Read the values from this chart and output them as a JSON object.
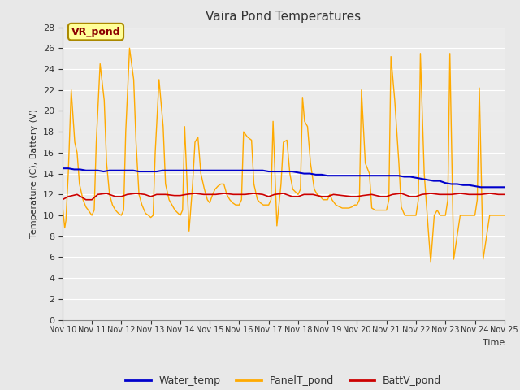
{
  "title": "Vaira Pond Temperatures",
  "xlabel": "Time",
  "ylabel": "Temperature (C), Battery (V)",
  "ylim": [
    0,
    28
  ],
  "yticks": [
    0,
    2,
    4,
    6,
    8,
    10,
    12,
    14,
    16,
    18,
    20,
    22,
    24,
    26,
    28
  ],
  "xtick_labels": [
    "Nov 10",
    "Nov 11",
    "Nov 12",
    "Nov 13",
    "Nov 14",
    "Nov 15",
    "Nov 16",
    "Nov 17",
    "Nov 18",
    "Nov 19",
    "Nov 20",
    "Nov 21",
    "Nov 22",
    "Nov 23",
    "Nov 24",
    "Nov 25"
  ],
  "background_color": "#e8e8e8",
  "plot_bg_color": "#ebebeb",
  "grid_color": "white",
  "water_temp_color": "#0000cc",
  "panel_temp_color": "#ffaa00",
  "batt_color": "#cc0000",
  "annotation_text": "VR_pond",
  "annotation_bg": "#ffff99",
  "annotation_border": "#aa8800",
  "annotation_text_color": "#8b0000",
  "legend_water": "Water_temp",
  "legend_panel": "PanelT_pond",
  "legend_batt": "BattV_pond",
  "water_temp_data": {
    "days": [
      10.0,
      10.2,
      10.4,
      10.6,
      10.8,
      11.0,
      11.2,
      11.4,
      11.6,
      11.8,
      12.0,
      12.2,
      12.4,
      12.6,
      12.8,
      13.0,
      13.2,
      13.4,
      13.6,
      13.8,
      14.0,
      14.2,
      14.4,
      14.6,
      14.8,
      15.0,
      15.2,
      15.4,
      15.6,
      15.8,
      16.0,
      16.2,
      16.4,
      16.6,
      16.8,
      17.0,
      17.2,
      17.4,
      17.6,
      17.8,
      18.0,
      18.2,
      18.4,
      18.6,
      18.8,
      19.0,
      19.2,
      19.4,
      19.6,
      19.8,
      20.0,
      20.2,
      20.4,
      20.6,
      20.8,
      21.0,
      21.2,
      21.4,
      21.6,
      21.8,
      22.0,
      22.2,
      22.4,
      22.6,
      22.8,
      23.0,
      23.2,
      23.4,
      23.6,
      23.8,
      24.0,
      24.2,
      24.4,
      24.6,
      24.8,
      25.0
    ],
    "values": [
      14.5,
      14.5,
      14.4,
      14.4,
      14.3,
      14.3,
      14.3,
      14.2,
      14.3,
      14.3,
      14.3,
      14.3,
      14.3,
      14.2,
      14.2,
      14.2,
      14.2,
      14.3,
      14.3,
      14.3,
      14.3,
      14.3,
      14.3,
      14.3,
      14.3,
      14.3,
      14.3,
      14.3,
      14.3,
      14.3,
      14.3,
      14.3,
      14.3,
      14.3,
      14.3,
      14.2,
      14.2,
      14.2,
      14.2,
      14.2,
      14.1,
      14.0,
      14.0,
      13.9,
      13.9,
      13.8,
      13.8,
      13.8,
      13.8,
      13.8,
      13.8,
      13.8,
      13.8,
      13.8,
      13.8,
      13.8,
      13.8,
      13.8,
      13.7,
      13.7,
      13.6,
      13.5,
      13.4,
      13.3,
      13.3,
      13.1,
      13.0,
      13.0,
      12.9,
      12.9,
      12.8,
      12.7,
      12.7,
      12.7,
      12.7,
      12.7
    ]
  },
  "panel_temp_data": {
    "days": [
      10.0,
      10.08,
      10.12,
      10.2,
      10.3,
      10.42,
      10.5,
      10.58,
      10.7,
      10.8,
      10.88,
      10.95,
      11.0,
      11.08,
      11.15,
      11.28,
      11.42,
      11.5,
      11.6,
      11.7,
      11.8,
      11.9,
      12.0,
      12.08,
      12.15,
      12.28,
      12.42,
      12.5,
      12.6,
      12.7,
      12.82,
      12.92,
      13.0,
      13.08,
      13.15,
      13.28,
      13.42,
      13.5,
      13.62,
      13.72,
      13.82,
      14.0,
      14.08,
      14.15,
      14.3,
      14.42,
      14.5,
      14.6,
      14.7,
      14.82,
      14.92,
      15.0,
      15.1,
      15.18,
      15.28,
      15.38,
      15.48,
      15.58,
      15.68,
      15.78,
      15.88,
      15.95,
      16.0,
      16.08,
      16.15,
      16.28,
      16.42,
      16.5,
      16.62,
      16.72,
      16.82,
      17.0,
      17.08,
      17.15,
      17.28,
      17.42,
      17.5,
      17.62,
      17.72,
      17.82,
      18.0,
      18.08,
      18.15,
      18.22,
      18.32,
      18.42,
      18.55,
      18.65,
      18.75,
      18.85,
      18.93,
      19.0,
      19.08,
      19.15,
      19.28,
      19.42,
      19.5,
      19.62,
      19.72,
      19.82,
      19.92,
      20.0,
      20.08,
      20.15,
      20.28,
      20.42,
      20.5,
      20.62,
      20.72,
      20.82,
      20.92,
      21.0,
      21.08,
      21.15,
      21.28,
      21.42,
      21.5,
      21.62,
      21.72,
      21.82,
      22.0,
      22.08,
      22.15,
      22.28,
      22.42,
      22.5,
      22.62,
      22.72,
      22.82,
      23.0,
      23.08,
      23.15,
      23.28,
      23.42,
      23.5,
      23.62,
      23.72,
      23.82,
      24.0,
      24.08,
      24.15,
      24.28,
      24.42,
      24.5,
      24.62,
      24.72,
      24.82,
      25.0
    ],
    "values": [
      11.0,
      8.8,
      9.5,
      14.0,
      22.0,
      17.0,
      16.0,
      13.0,
      11.5,
      10.8,
      10.5,
      10.2,
      10.0,
      10.5,
      17.0,
      24.5,
      21.0,
      15.0,
      12.0,
      11.0,
      10.5,
      10.2,
      10.0,
      10.5,
      18.0,
      26.0,
      23.0,
      17.0,
      12.0,
      11.0,
      10.2,
      10.0,
      9.8,
      10.0,
      16.0,
      23.0,
      18.5,
      13.0,
      11.5,
      11.0,
      10.5,
      10.0,
      10.5,
      18.5,
      8.5,
      13.0,
      17.0,
      17.5,
      14.0,
      12.5,
      11.5,
      11.2,
      12.0,
      12.5,
      12.8,
      13.0,
      13.0,
      12.0,
      11.5,
      11.2,
      11.0,
      11.0,
      11.0,
      11.5,
      18.0,
      17.5,
      17.2,
      13.0,
      11.5,
      11.2,
      11.0,
      11.0,
      11.5,
      19.0,
      9.0,
      13.0,
      17.0,
      17.2,
      14.0,
      12.5,
      12.0,
      12.5,
      21.3,
      19.0,
      18.5,
      15.0,
      12.5,
      12.0,
      11.8,
      11.5,
      11.5,
      11.5,
      12.0,
      11.5,
      11.0,
      10.8,
      10.7,
      10.7,
      10.7,
      10.8,
      11.0,
      11.0,
      11.5,
      22.0,
      15.0,
      14.0,
      10.7,
      10.5,
      10.5,
      10.5,
      10.5,
      10.5,
      11.5,
      25.2,
      21.0,
      15.0,
      10.8,
      10.0,
      10.0,
      10.0,
      10.0,
      11.5,
      25.5,
      14.0,
      8.5,
      5.5,
      10.0,
      10.5,
      10.0,
      10.0,
      11.5,
      25.5,
      5.8,
      8.5,
      10.0,
      10.0,
      10.0,
      10.0,
      10.0,
      11.5,
      22.2,
      5.8,
      8.5,
      10.0,
      10.0,
      10.0,
      10.0,
      10.0
    ]
  },
  "batt_data": {
    "days": [
      10.0,
      10.2,
      10.5,
      10.8,
      11.0,
      11.2,
      11.5,
      11.8,
      12.0,
      12.2,
      12.5,
      12.8,
      13.0,
      13.2,
      13.5,
      13.8,
      14.0,
      14.2,
      14.5,
      14.8,
      15.0,
      15.2,
      15.5,
      15.8,
      16.0,
      16.2,
      16.5,
      16.8,
      17.0,
      17.2,
      17.5,
      17.8,
      18.0,
      18.2,
      18.5,
      18.8,
      19.0,
      19.2,
      19.5,
      19.8,
      20.0,
      20.2,
      20.5,
      20.8,
      21.0,
      21.2,
      21.5,
      21.8,
      22.0,
      22.2,
      22.5,
      22.8,
      23.0,
      23.2,
      23.5,
      23.8,
      24.0,
      24.2,
      24.5,
      24.8,
      25.0
    ],
    "values": [
      11.5,
      11.8,
      12.0,
      11.5,
      11.5,
      12.0,
      12.1,
      11.8,
      11.8,
      12.0,
      12.1,
      12.0,
      11.8,
      12.0,
      12.0,
      11.9,
      11.9,
      12.0,
      12.1,
      12.0,
      12.0,
      12.0,
      12.1,
      12.0,
      12.0,
      12.0,
      12.1,
      12.0,
      11.8,
      12.0,
      12.1,
      11.8,
      11.8,
      12.0,
      12.0,
      11.8,
      11.8,
      12.0,
      11.9,
      11.8,
      11.8,
      11.9,
      12.0,
      11.8,
      11.8,
      12.0,
      12.1,
      11.8,
      11.8,
      12.0,
      12.1,
      12.0,
      12.0,
      12.0,
      12.1,
      12.0,
      12.0,
      12.0,
      12.1,
      12.0,
      12.0
    ]
  }
}
